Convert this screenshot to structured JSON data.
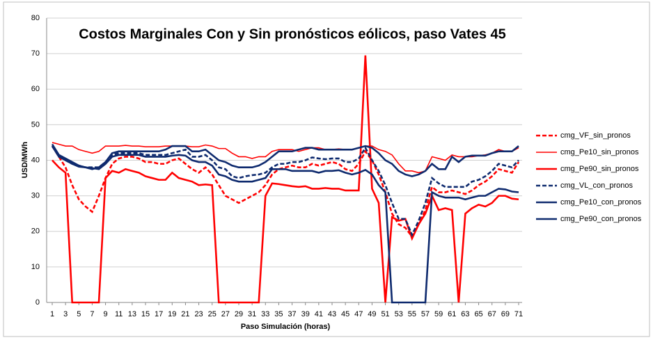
{
  "chart_data": {
    "type": "line",
    "title": "Costos Marginales Con y Sin pronósticos eólicos, paso Vates 45",
    "x_label": "Paso Simulación (horas)",
    "y_label": "USD/MWh",
    "x": [
      1,
      2,
      3,
      4,
      5,
      6,
      7,
      8,
      9,
      10,
      11,
      12,
      13,
      14,
      15,
      16,
      17,
      18,
      19,
      20,
      21,
      22,
      23,
      24,
      25,
      26,
      27,
      28,
      29,
      30,
      31,
      32,
      33,
      34,
      35,
      36,
      37,
      38,
      39,
      40,
      41,
      42,
      43,
      44,
      45,
      46,
      47,
      48,
      49,
      50,
      51,
      52,
      53,
      54,
      55,
      56,
      57,
      58,
      59,
      60,
      61,
      62,
      63,
      64,
      65,
      66,
      67,
      68,
      69,
      70,
      71
    ],
    "xlim": [
      1,
      71
    ],
    "xticks": [
      1,
      3,
      5,
      7,
      9,
      11,
      13,
      15,
      17,
      19,
      21,
      23,
      25,
      27,
      29,
      31,
      33,
      35,
      37,
      39,
      41,
      43,
      45,
      47,
      49,
      51,
      53,
      55,
      57,
      59,
      61,
      63,
      65,
      67,
      69,
      71
    ],
    "ylim": [
      0,
      80
    ],
    "yticks": [
      0,
      10,
      20,
      30,
      40,
      50,
      60,
      70,
      80
    ],
    "grid": true,
    "legend": "right",
    "series": [
      {
        "name": "cmg_VF_sin_pronos",
        "color": "#ff0000",
        "dashed": true,
        "thick": true,
        "values": [
          44,
          41,
          38,
          33,
          29,
          27,
          25.5,
          30,
          35,
          39,
          40.5,
          41,
          41,
          40.5,
          39.5,
          39.5,
          39,
          39,
          40,
          40.5,
          39,
          37.5,
          36.5,
          38,
          36,
          33,
          30,
          29,
          28,
          29,
          30,
          31,
          33,
          36,
          37.5,
          38,
          38.5,
          38,
          38,
          39,
          38.5,
          39,
          39.5,
          39,
          37.5,
          37,
          39,
          42.5,
          40,
          36,
          31,
          25,
          22,
          21,
          18.5,
          22,
          26,
          32.5,
          31,
          31,
          31.5,
          31,
          30.5,
          31.5,
          33,
          34,
          35.5,
          37.5,
          37,
          36.5,
          39.5
        ]
      },
      {
        "name": "cmg_Pe10_sin_pronos",
        "color": "#ff0000",
        "dashed": false,
        "thick": false,
        "values": [
          45,
          44.5,
          44,
          44,
          43,
          42.5,
          42,
          42.5,
          44,
          44,
          44,
          44.2,
          44,
          44,
          43.8,
          43.8,
          43.8,
          44,
          44,
          44,
          44,
          43.8,
          43.8,
          44.3,
          44,
          43.3,
          43.3,
          42,
          41,
          41,
          40.5,
          41,
          41,
          42.5,
          43,
          43,
          43,
          42.5,
          43,
          43.5,
          43.5,
          43,
          43,
          43.2,
          43,
          43,
          43.5,
          44,
          44,
          43,
          42.5,
          41.5,
          39,
          37,
          37,
          36.5,
          37,
          41,
          40.5,
          40,
          41.5,
          41,
          41,
          41,
          41.3,
          41.5,
          42,
          43,
          42.5,
          42.5,
          43.5
        ]
      },
      {
        "name": "cmg_Pe90_sin_pronos",
        "color": "#ff0000",
        "dashed": false,
        "thick": true,
        "values": [
          40,
          38,
          36.5,
          0,
          0,
          0,
          0,
          0,
          35,
          37,
          36.5,
          37.5,
          37,
          36.5,
          35.5,
          35,
          34.5,
          34.5,
          36.5,
          35,
          34.5,
          34,
          33,
          33.2,
          33,
          0,
          0,
          0,
          0,
          0,
          0,
          0,
          30,
          33.5,
          33.3,
          33,
          32.7,
          32.5,
          32.7,
          32,
          32,
          32.2,
          32,
          32,
          31.5,
          31.5,
          31.5,
          69.5,
          32,
          28,
          0,
          24,
          23,
          23.5,
          18,
          22,
          25,
          30,
          26,
          26.5,
          26,
          0,
          25,
          26.5,
          27.5,
          27,
          28,
          30,
          30,
          29.2,
          29
        ]
      },
      {
        "name": "cmg_VL_con_pronos",
        "color": "#0e2a6e",
        "dashed": true,
        "thick": true,
        "values": [
          44,
          41.5,
          40,
          39,
          38.5,
          38,
          38,
          38,
          39.5,
          41.5,
          42,
          42,
          42,
          42,
          41.5,
          41.5,
          41.5,
          41.5,
          42,
          42.5,
          43,
          41,
          41,
          41.5,
          40,
          38,
          37.5,
          35.5,
          35,
          35.5,
          35.8,
          36,
          36.5,
          38,
          39,
          39,
          39.5,
          39.5,
          40,
          40.8,
          40.5,
          40.3,
          40.5,
          40.5,
          39.5,
          39.5,
          40.5,
          43.5,
          40,
          37,
          33,
          28,
          23.5,
          23.5,
          19,
          23,
          28,
          35,
          33.5,
          32.5,
          32.5,
          32.5,
          32.5,
          34,
          34.5,
          35.5,
          37,
          39,
          38.5,
          38,
          40
        ]
      },
      {
        "name": "cmg_Pe10_con_pronos",
        "color": "#0e2a6e",
        "dashed": false,
        "thick": true,
        "values": [
          44.5,
          41.5,
          40.5,
          39.5,
          38.5,
          38,
          37.5,
          38,
          39.5,
          42,
          42.5,
          42.5,
          42.5,
          42.5,
          42.5,
          42.5,
          42.5,
          43,
          44,
          44,
          44,
          42.5,
          42.5,
          43,
          41.5,
          40,
          39.5,
          38.5,
          38,
          38,
          38,
          38.5,
          39.5,
          41,
          42.5,
          42.5,
          42.5,
          43,
          43.5,
          43.5,
          43,
          43,
          43,
          43,
          43,
          43,
          43.5,
          44,
          43.5,
          42,
          40,
          39,
          37,
          36,
          35.5,
          36,
          37,
          39,
          37.5,
          37.5,
          41,
          39.5,
          41,
          41.3,
          41.3,
          41.3,
          42,
          42.5,
          42.5,
          42.5,
          44
        ]
      },
      {
        "name": "cmg_Pe90_con_pronos",
        "color": "#0e2a6e",
        "dashed": false,
        "thick": true,
        "values": [
          44,
          41,
          40,
          39,
          38.2,
          38,
          37.8,
          37.5,
          39,
          41,
          41.5,
          41.5,
          41.5,
          41.5,
          41,
          41,
          41,
          41,
          41.3,
          41.5,
          41.3,
          40,
          39.5,
          39.5,
          38.5,
          36,
          35.5,
          34.5,
          34,
          34,
          34,
          34.5,
          35,
          37.5,
          37.5,
          37.5,
          37,
          37,
          37,
          37,
          36.5,
          37,
          37,
          37.2,
          36.5,
          36,
          36.5,
          37.3,
          36,
          33,
          31,
          0,
          0,
          0,
          0,
          0,
          0,
          31,
          30,
          29.5,
          29.5,
          29.5,
          29,
          29.5,
          30,
          30,
          31,
          32,
          31.8,
          31.2,
          31
        ]
      }
    ]
  }
}
